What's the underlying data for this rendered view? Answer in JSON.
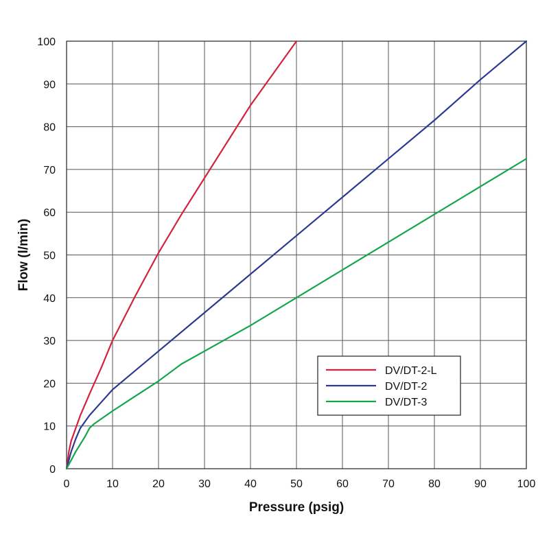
{
  "chart_data": {
    "type": "line",
    "xlabel": "Pressure (psig)",
    "ylabel": "Flow (l/min)",
    "xlim": [
      0,
      100
    ],
    "ylim": [
      0,
      100
    ],
    "xticks": [
      0,
      10,
      20,
      30,
      40,
      50,
      60,
      70,
      80,
      90,
      100
    ],
    "yticks": [
      0,
      10,
      20,
      30,
      40,
      50,
      60,
      70,
      80,
      90,
      100
    ],
    "grid": true,
    "legend_position": "lower-right",
    "series": [
      {
        "name": "DV/DT-2-L",
        "color": "#d4213d",
        "points": [
          [
            0,
            0
          ],
          [
            0.5,
            4
          ],
          [
            1,
            6.5
          ],
          [
            2,
            9.5
          ],
          [
            3,
            12.5
          ],
          [
            5,
            17.5
          ],
          [
            7.5,
            23.5
          ],
          [
            10,
            30
          ],
          [
            15,
            40.5
          ],
          [
            20,
            50.5
          ],
          [
            25,
            59.5
          ],
          [
            30,
            68
          ],
          [
            35,
            76.5
          ],
          [
            40,
            85
          ],
          [
            45,
            92.5
          ],
          [
            50,
            100
          ]
        ]
      },
      {
        "name": "DV/DT-2",
        "color": "#2b3990",
        "points": [
          [
            0,
            0
          ],
          [
            1,
            4
          ],
          [
            2,
            7
          ],
          [
            3,
            9.5
          ],
          [
            4,
            11
          ],
          [
            5,
            12.5
          ],
          [
            7.5,
            15.5
          ],
          [
            10,
            18.5
          ],
          [
            15,
            23
          ],
          [
            20,
            27.5
          ],
          [
            30,
            36.5
          ],
          [
            40,
            45.5
          ],
          [
            50,
            54.5
          ],
          [
            60,
            63.5
          ],
          [
            70,
            72.5
          ],
          [
            80,
            81.5
          ],
          [
            90,
            91
          ],
          [
            100,
            100
          ]
        ]
      },
      {
        "name": "DV/DT-3",
        "color": "#13a54a",
        "points": [
          [
            0,
            0
          ],
          [
            2,
            4
          ],
          [
            4,
            7.5
          ],
          [
            5,
            9.5
          ],
          [
            6,
            10.5
          ],
          [
            8,
            12
          ],
          [
            10,
            13.5
          ],
          [
            15,
            17
          ],
          [
            20,
            20.5
          ],
          [
            25,
            24.5
          ],
          [
            30,
            27.5
          ],
          [
            40,
            33.5
          ],
          [
            50,
            40
          ],
          [
            60,
            46.5
          ],
          [
            70,
            53
          ],
          [
            80,
            59.5
          ],
          [
            90,
            66
          ],
          [
            100,
            72.5
          ]
        ]
      }
    ]
  }
}
